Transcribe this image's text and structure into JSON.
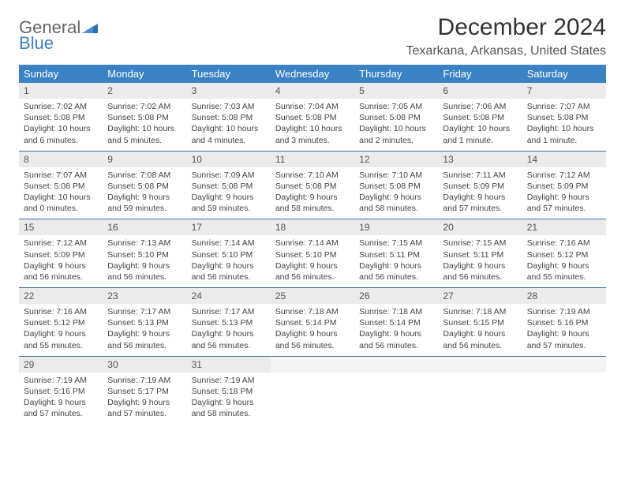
{
  "logo": {
    "text1": "General",
    "text2": "Blue"
  },
  "title": "December 2024",
  "location": "Texarkana, Arkansas, United States",
  "colors": {
    "header_bg": "#3b82c4",
    "daynum_bg": "#ebebeb",
    "week_border": "#3b6fa0",
    "text": "#333333"
  },
  "daysOfWeek": [
    "Sunday",
    "Monday",
    "Tuesday",
    "Wednesday",
    "Thursday",
    "Friday",
    "Saturday"
  ],
  "weeks": [
    [
      {
        "n": "1",
        "sr": "Sunrise: 7:02 AM",
        "ss": "Sunset: 5:08 PM",
        "d1": "Daylight: 10 hours",
        "d2": "and 6 minutes."
      },
      {
        "n": "2",
        "sr": "Sunrise: 7:02 AM",
        "ss": "Sunset: 5:08 PM",
        "d1": "Daylight: 10 hours",
        "d2": "and 5 minutes."
      },
      {
        "n": "3",
        "sr": "Sunrise: 7:03 AM",
        "ss": "Sunset: 5:08 PM",
        "d1": "Daylight: 10 hours",
        "d2": "and 4 minutes."
      },
      {
        "n": "4",
        "sr": "Sunrise: 7:04 AM",
        "ss": "Sunset: 5:08 PM",
        "d1": "Daylight: 10 hours",
        "d2": "and 3 minutes."
      },
      {
        "n": "5",
        "sr": "Sunrise: 7:05 AM",
        "ss": "Sunset: 5:08 PM",
        "d1": "Daylight: 10 hours",
        "d2": "and 2 minutes."
      },
      {
        "n": "6",
        "sr": "Sunrise: 7:06 AM",
        "ss": "Sunset: 5:08 PM",
        "d1": "Daylight: 10 hours",
        "d2": "and 1 minute."
      },
      {
        "n": "7",
        "sr": "Sunrise: 7:07 AM",
        "ss": "Sunset: 5:08 PM",
        "d1": "Daylight: 10 hours",
        "d2": "and 1 minute."
      }
    ],
    [
      {
        "n": "8",
        "sr": "Sunrise: 7:07 AM",
        "ss": "Sunset: 5:08 PM",
        "d1": "Daylight: 10 hours",
        "d2": "and 0 minutes."
      },
      {
        "n": "9",
        "sr": "Sunrise: 7:08 AM",
        "ss": "Sunset: 5:08 PM",
        "d1": "Daylight: 9 hours",
        "d2": "and 59 minutes."
      },
      {
        "n": "10",
        "sr": "Sunrise: 7:09 AM",
        "ss": "Sunset: 5:08 PM",
        "d1": "Daylight: 9 hours",
        "d2": "and 59 minutes."
      },
      {
        "n": "11",
        "sr": "Sunrise: 7:10 AM",
        "ss": "Sunset: 5:08 PM",
        "d1": "Daylight: 9 hours",
        "d2": "and 58 minutes."
      },
      {
        "n": "12",
        "sr": "Sunrise: 7:10 AM",
        "ss": "Sunset: 5:08 PM",
        "d1": "Daylight: 9 hours",
        "d2": "and 58 minutes."
      },
      {
        "n": "13",
        "sr": "Sunrise: 7:11 AM",
        "ss": "Sunset: 5:09 PM",
        "d1": "Daylight: 9 hours",
        "d2": "and 57 minutes."
      },
      {
        "n": "14",
        "sr": "Sunrise: 7:12 AM",
        "ss": "Sunset: 5:09 PM",
        "d1": "Daylight: 9 hours",
        "d2": "and 57 minutes."
      }
    ],
    [
      {
        "n": "15",
        "sr": "Sunrise: 7:12 AM",
        "ss": "Sunset: 5:09 PM",
        "d1": "Daylight: 9 hours",
        "d2": "and 56 minutes."
      },
      {
        "n": "16",
        "sr": "Sunrise: 7:13 AM",
        "ss": "Sunset: 5:10 PM",
        "d1": "Daylight: 9 hours",
        "d2": "and 56 minutes."
      },
      {
        "n": "17",
        "sr": "Sunrise: 7:14 AM",
        "ss": "Sunset: 5:10 PM",
        "d1": "Daylight: 9 hours",
        "d2": "and 56 minutes."
      },
      {
        "n": "18",
        "sr": "Sunrise: 7:14 AM",
        "ss": "Sunset: 5:10 PM",
        "d1": "Daylight: 9 hours",
        "d2": "and 56 minutes."
      },
      {
        "n": "19",
        "sr": "Sunrise: 7:15 AM",
        "ss": "Sunset: 5:11 PM",
        "d1": "Daylight: 9 hours",
        "d2": "and 56 minutes."
      },
      {
        "n": "20",
        "sr": "Sunrise: 7:15 AM",
        "ss": "Sunset: 5:11 PM",
        "d1": "Daylight: 9 hours",
        "d2": "and 56 minutes."
      },
      {
        "n": "21",
        "sr": "Sunrise: 7:16 AM",
        "ss": "Sunset: 5:12 PM",
        "d1": "Daylight: 9 hours",
        "d2": "and 55 minutes."
      }
    ],
    [
      {
        "n": "22",
        "sr": "Sunrise: 7:16 AM",
        "ss": "Sunset: 5:12 PM",
        "d1": "Daylight: 9 hours",
        "d2": "and 55 minutes."
      },
      {
        "n": "23",
        "sr": "Sunrise: 7:17 AM",
        "ss": "Sunset: 5:13 PM",
        "d1": "Daylight: 9 hours",
        "d2": "and 56 minutes."
      },
      {
        "n": "24",
        "sr": "Sunrise: 7:17 AM",
        "ss": "Sunset: 5:13 PM",
        "d1": "Daylight: 9 hours",
        "d2": "and 56 minutes."
      },
      {
        "n": "25",
        "sr": "Sunrise: 7:18 AM",
        "ss": "Sunset: 5:14 PM",
        "d1": "Daylight: 9 hours",
        "d2": "and 56 minutes."
      },
      {
        "n": "26",
        "sr": "Sunrise: 7:18 AM",
        "ss": "Sunset: 5:14 PM",
        "d1": "Daylight: 9 hours",
        "d2": "and 56 minutes."
      },
      {
        "n": "27",
        "sr": "Sunrise: 7:18 AM",
        "ss": "Sunset: 5:15 PM",
        "d1": "Daylight: 9 hours",
        "d2": "and 56 minutes."
      },
      {
        "n": "28",
        "sr": "Sunrise: 7:19 AM",
        "ss": "Sunset: 5:16 PM",
        "d1": "Daylight: 9 hours",
        "d2": "and 57 minutes."
      }
    ],
    [
      {
        "n": "29",
        "sr": "Sunrise: 7:19 AM",
        "ss": "Sunset: 5:16 PM",
        "d1": "Daylight: 9 hours",
        "d2": "and 57 minutes."
      },
      {
        "n": "30",
        "sr": "Sunrise: 7:19 AM",
        "ss": "Sunset: 5:17 PM",
        "d1": "Daylight: 9 hours",
        "d2": "and 57 minutes."
      },
      {
        "n": "31",
        "sr": "Sunrise: 7:19 AM",
        "ss": "Sunset: 5:18 PM",
        "d1": "Daylight: 9 hours",
        "d2": "and 58 minutes."
      },
      {
        "empty": true
      },
      {
        "empty": true
      },
      {
        "empty": true
      },
      {
        "empty": true
      }
    ]
  ]
}
